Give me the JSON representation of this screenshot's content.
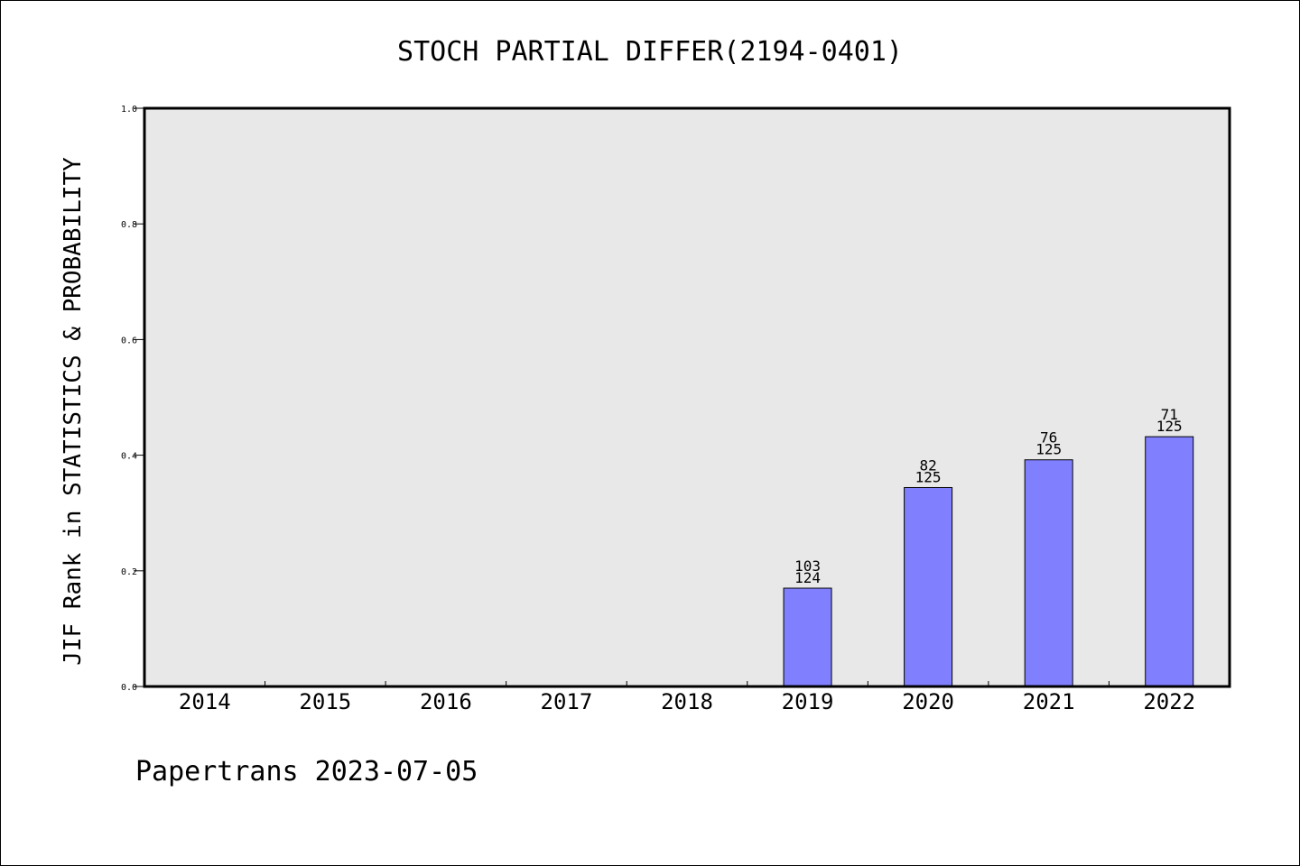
{
  "chart_data": {
    "type": "bar",
    "title": "STOCH PARTIAL DIFFER(2194-0401)",
    "xlabel": "",
    "ylabel": "JIF Rank in STATISTICS & PROBABILITY",
    "categories": [
      "2014",
      "2015",
      "2016",
      "2017",
      "2018",
      "2019",
      "2020",
      "2021",
      "2022"
    ],
    "values": [
      null,
      null,
      null,
      null,
      null,
      0.17,
      0.344,
      0.392,
      0.432
    ],
    "bar_labels": [
      null,
      null,
      null,
      null,
      null,
      {
        "rank": "103",
        "total": "124"
      },
      {
        "rank": "82",
        "total": "125"
      },
      {
        "rank": "76",
        "total": "125"
      },
      {
        "rank": "71",
        "total": "125"
      }
    ],
    "y_ticks": [
      "0.0",
      "0.2",
      "0.4",
      "0.6",
      "0.8",
      "1.0"
    ],
    "ylim": [
      0,
      1
    ],
    "grid": false,
    "bar_color": "#8080ff",
    "plot_background": "#e8e8e8"
  },
  "footer": "Papertrans 2023-07-05"
}
